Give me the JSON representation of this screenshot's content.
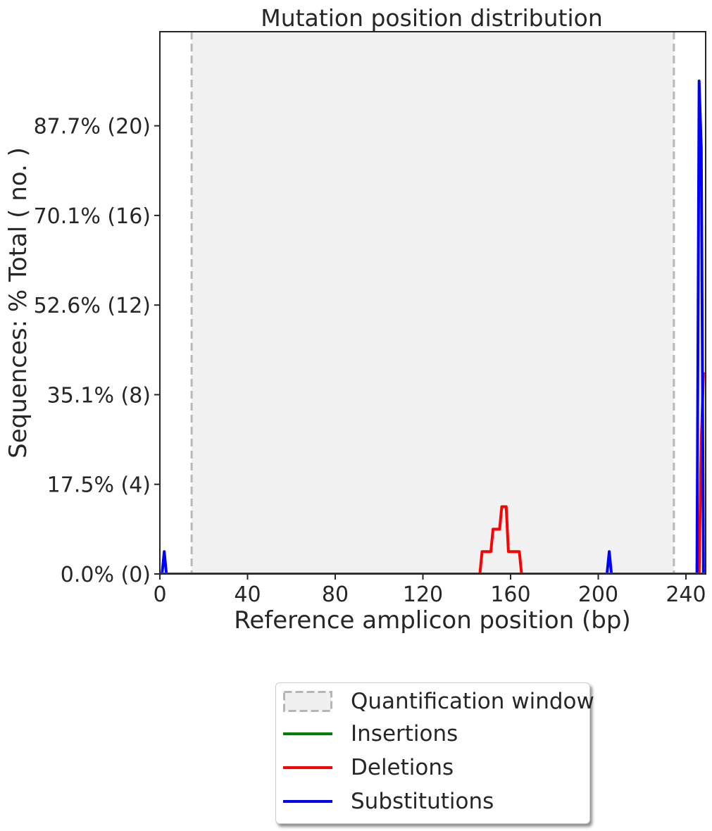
{
  "chart_data": {
    "type": "line",
    "title": "Mutation position distribution",
    "xlabel": "Reference amplicon position (bp)",
    "ylabel": "Sequences: % Total ( no. )",
    "xlim": [
      0,
      249
    ],
    "ylim": [
      0,
      24.2
    ],
    "xticks": [
      0,
      40,
      80,
      120,
      160,
      200,
      240
    ],
    "yticks": [
      {
        "value": 0,
        "label": "0.0% (0)"
      },
      {
        "value": 4,
        "label": "17.5% (4)"
      },
      {
        "value": 8,
        "label": "35.1% (8)"
      },
      {
        "value": 12,
        "label": "52.6% (12)"
      },
      {
        "value": 16,
        "label": "70.1% (16)"
      },
      {
        "value": 20,
        "label": "87.7% (20)"
      }
    ],
    "quantification_window": [
      14.5,
      234.5
    ],
    "series": [
      {
        "name": "Insertions",
        "color": "#008000",
        "points": [
          [
            0,
            0
          ],
          [
            249,
            0
          ]
        ]
      },
      {
        "name": "Deletions",
        "color": "#ff0000",
        "points": [
          [
            0,
            0
          ],
          [
            146,
            0
          ],
          [
            147,
            1
          ],
          [
            151,
            1
          ],
          [
            152,
            2
          ],
          [
            155,
            2
          ],
          [
            156,
            3
          ],
          [
            158,
            3
          ],
          [
            159,
            1
          ],
          [
            164,
            1
          ],
          [
            165,
            0
          ],
          [
            246,
            0
          ],
          [
            247,
            6
          ],
          [
            248,
            9
          ]
        ]
      },
      {
        "name": "Substitutions",
        "color": "#0000ff",
        "points": [
          [
            0,
            0
          ],
          [
            1,
            0
          ],
          [
            2,
            1
          ],
          [
            3,
            0
          ],
          [
            204,
            0
          ],
          [
            205,
            1
          ],
          [
            206,
            0
          ],
          [
            245,
            0
          ],
          [
            246,
            22
          ],
          [
            247,
            19
          ],
          [
            248,
            0
          ],
          [
            249,
            0
          ]
        ]
      }
    ],
    "legend": {
      "position": "bottom-center",
      "entries": [
        "Quantification window",
        "Insertions",
        "Deletions",
        "Substitutions"
      ]
    },
    "grid": false
  }
}
